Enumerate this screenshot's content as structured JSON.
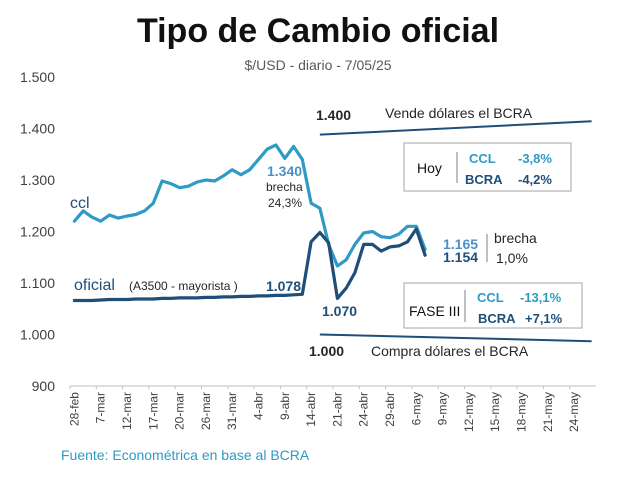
{
  "title": "Tipo de Cambio oficial",
  "subtitle": "$/USD - diario - 7/05/25",
  "source": "Fuente: Econométrica en base al BCRA",
  "colors": {
    "ccl": "#2E9BC4",
    "oficial": "#1F4E79",
    "band": "#1F4E79",
    "ccl_label": "#4A90C8"
  },
  "chart_data": {
    "type": "line",
    "ylim": [
      900,
      1500
    ],
    "yticks": [
      "1.500",
      "1.400",
      "1.300",
      "1.200",
      "1.100",
      "1.000",
      "900"
    ],
    "ytick_values": [
      1500,
      1400,
      1300,
      1200,
      1100,
      1000,
      900
    ],
    "xticks": [
      "28-feb",
      "7-mar",
      "12-mar",
      "17-mar",
      "20-mar",
      "26-mar",
      "31-mar",
      "4-abr",
      "9-abr",
      "14-abr",
      "21-abr",
      "24-abr",
      "29-abr",
      "6-may",
      "9-may",
      "12-may",
      "15-may",
      "18-may",
      "21-may",
      "24-may"
    ],
    "n_slots": 60,
    "series": [
      {
        "name": "ccl",
        "values": [
          1220,
          1240,
          1228,
          1220,
          1232,
          1226,
          1230,
          1233,
          1240,
          1255,
          1298,
          1293,
          1285,
          1288,
          1296,
          1300,
          1298,
          1308,
          1320,
          1310,
          1320,
          1340,
          1360,
          1368,
          1342,
          1365,
          1340,
          1255,
          1245,
          1175,
          1133,
          1145,
          1175,
          1197,
          1200,
          1190,
          1188,
          1195,
          1210,
          1210,
          1165
        ]
      },
      {
        "name": "oficial",
        "values": [
          1066,
          1066,
          1066,
          1067,
          1068,
          1068,
          1068,
          1069,
          1069,
          1069,
          1070,
          1070,
          1071,
          1071,
          1071,
          1072,
          1072,
          1073,
          1073,
          1074,
          1074,
          1075,
          1075,
          1076,
          1076,
          1077,
          1078,
          1180,
          1198,
          1178,
          1070,
          1090,
          1120,
          1175,
          1175,
          1162,
          1170,
          1172,
          1180,
          1205,
          1154
        ]
      }
    ],
    "band": {
      "upper_start": 1388,
      "upper_end": 1414,
      "lower_start": 1000,
      "lower_end": 987,
      "start_index": 28,
      "end_index": 60
    },
    "labels": {
      "upper_value": "1.400",
      "upper_text": "Vende dólares el BCRA",
      "lower_value": "1.000",
      "lower_text": "Compra dólares el BCRA",
      "ccl_series": "ccl",
      "oficial_series": "oficial",
      "oficial_note": "(A3500 - mayorista )",
      "ccl_peak": "1.340",
      "brecha_title": "brecha",
      "brecha_peak": "24,3%",
      "oficial_last_pre": "1.078",
      "oficial_min": "1.070",
      "ccl_last": "1.165",
      "oficial_last": "1.154",
      "brecha_last": "1,0%"
    },
    "hoy_box": {
      "label": "Hoy",
      "row1_name": "CCL",
      "row1_value": "-3,8%",
      "row2_name": "BCRA",
      "row2_value": "-4,2%"
    },
    "fase_box": {
      "label": "FASE III",
      "row1_name": "CCL",
      "row1_value": "-13,1%",
      "row2_name": "BCRA",
      "row2_value": "+7,1%"
    }
  }
}
